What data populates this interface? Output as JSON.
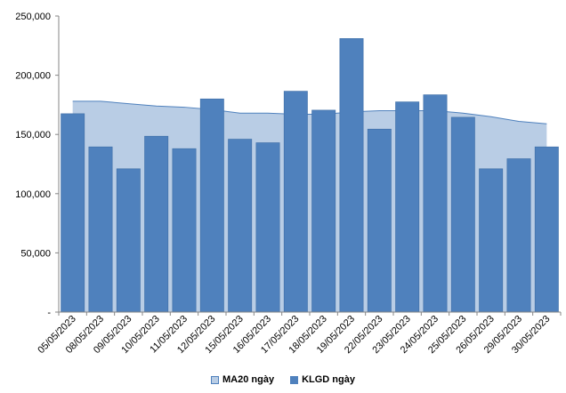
{
  "chart_data": {
    "type": "bar",
    "categories": [
      "05/05/2023",
      "08/05/2023",
      "09/05/2023",
      "10/05/2023",
      "11/05/2023",
      "12/05/2023",
      "15/05/2023",
      "16/05/2023",
      "17/05/2023",
      "18/05/2023",
      "19/05/2023",
      "22/05/2023",
      "23/05/2023",
      "24/05/2023",
      "25/05/2023",
      "26/05/2023",
      "29/05/2023",
      "30/05/2023"
    ],
    "series": [
      {
        "name": "MA20 ngày",
        "type": "area",
        "values": [
          178000,
          178000,
          176000,
          174000,
          173000,
          171000,
          168000,
          168000,
          167000,
          167000,
          169000,
          170000,
          170000,
          170000,
          168000,
          165000,
          161000,
          159000
        ]
      },
      {
        "name": "KLGD ngày",
        "type": "bar",
        "values": [
          167500,
          139500,
          121000,
          148500,
          138000,
          180000,
          146000,
          143000,
          186500,
          170500,
          231000,
          154500,
          177500,
          183500,
          164500,
          121000,
          129500,
          139500
        ]
      }
    ],
    "ylim": [
      0,
      250000
    ],
    "yticks": [
      "-",
      "50,000",
      "100,000",
      "150,000",
      "200,000",
      "250,000"
    ],
    "ytick_values": [
      0,
      50000,
      100000,
      150000,
      200000,
      250000
    ],
    "grid": false,
    "legend_position": "bottom",
    "colors": {
      "bar_fill": "#4f81bd",
      "bar_edge": "#3e6ea6",
      "area_fill": "#b9cde5",
      "area_edge": "#4f81bd",
      "axis": "#868686"
    }
  },
  "legend": {
    "ma20_label": "MA20 ngày",
    "klgd_label": "KLGD ngày"
  }
}
